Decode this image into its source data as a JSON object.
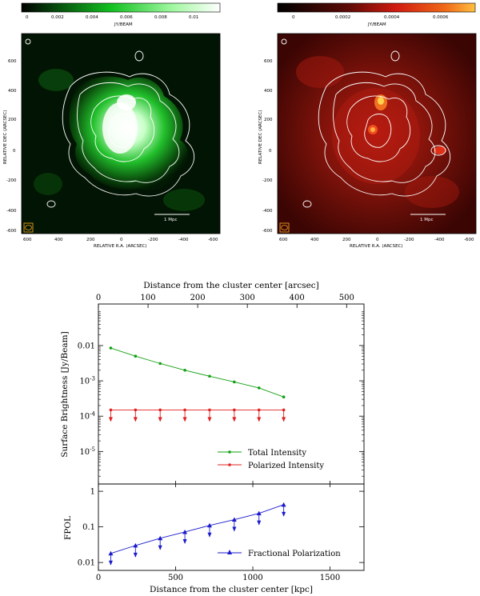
{
  "colors": {
    "green_map": "#1fbf2a",
    "red_map": "#8b1a10",
    "total_intensity": "#12a012",
    "polarized_intensity": "#e02020",
    "fractional_polarization": "#1a1acc",
    "beam_box": "#e8a020"
  },
  "maps": [
    {
      "colorbar_ticks": [
        "0",
        "0.002",
        "0.004",
        "0.006",
        "0.008",
        "0.01"
      ],
      "colorbar_unit": "JY/BEAM",
      "ylabel": "RELATIVE DEC (ARCSEC)",
      "xlabel": "RELATIVE R.A. (ARCSEC)",
      "yticks": [
        "600",
        "400",
        "200",
        "0",
        "-200",
        "-400",
        "-600"
      ],
      "xticks": [
        "600",
        "400",
        "200",
        "0",
        "-200",
        "-400",
        "-600"
      ],
      "scalebar_label": "1 Mpc"
    },
    {
      "colorbar_ticks": [
        "0",
        "0.0002",
        "0.0004",
        "0.0006"
      ],
      "colorbar_unit": "JY/BEAM",
      "ylabel": "RELATIVE DEC (ARCSEC)",
      "xlabel": "RELATIVE R.A. (ARCSEC)",
      "yticks": [
        "600",
        "400",
        "200",
        "0",
        "-200",
        "-400",
        "-600"
      ],
      "xticks": [
        "600",
        "400",
        "200",
        "0",
        "-200",
        "-400",
        "-600"
      ],
      "scalebar_label": "1 Mpc"
    }
  ],
  "chart_data": [
    {
      "type": "line",
      "top_xlabel": "Distance from the cluster center [arcsec]",
      "top_xticks": [
        "0",
        "100",
        "200",
        "300",
        "400",
        "500"
      ],
      "top_xlim": [
        0,
        535
      ],
      "ylabel": "Surface Brightness [Jy/Beam]",
      "yticks": [
        "0.01",
        "10^-3",
        "10^-4",
        "10^-5"
      ],
      "log_y": true,
      "ylim": [
        1.2e-06,
        0.15
      ],
      "x_kpc": [
        80,
        240,
        400,
        560,
        720,
        880,
        1040,
        1200
      ],
      "series": [
        {
          "name": "Total Intensity",
          "values": [
            0.0085,
            0.005,
            0.0031,
            0.002,
            0.00135,
            0.00093,
            0.00063,
            0.00035
          ],
          "upper_limit": false
        },
        {
          "name": "Polarized Intensity",
          "values": [
            0.00015,
            0.00015,
            0.00015,
            0.00015,
            0.00015,
            0.00015,
            0.00015,
            0.00015
          ],
          "upper_limit": true
        }
      ]
    },
    {
      "type": "line",
      "xlabel": "Distance from the cluster center [kpc]",
      "xticks": [
        "0",
        "500",
        "1000",
        "1500"
      ],
      "xlim": [
        0,
        1720
      ],
      "ylabel": "FPOL",
      "yticks": [
        "1",
        "0.1",
        "0.01"
      ],
      "log_y": true,
      "ylim": [
        0.006,
        1.6
      ],
      "x_kpc": [
        80,
        240,
        400,
        560,
        720,
        880,
        1040,
        1200
      ],
      "series": [
        {
          "name": "Fractional Polarization",
          "values": [
            0.018,
            0.03,
            0.048,
            0.072,
            0.11,
            0.16,
            0.24,
            0.42
          ],
          "upper_limit": true
        }
      ]
    }
  ]
}
